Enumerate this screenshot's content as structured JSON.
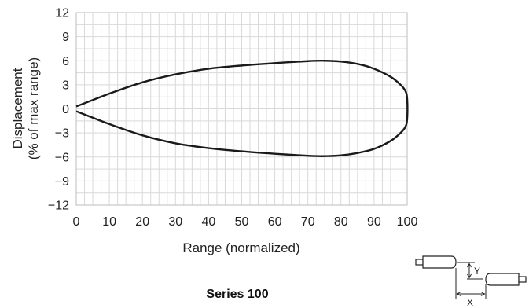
{
  "chart_data": {
    "type": "line",
    "title": "",
    "caption": "Series 100",
    "xlabel": "Range (normalized)",
    "ylabel_lines": [
      "Displacement",
      "(% of max range)"
    ],
    "xlim": [
      0,
      100
    ],
    "ylim": [
      -12,
      12
    ],
    "x_ticks": [
      0,
      10,
      20,
      30,
      40,
      50,
      60,
      70,
      80,
      90,
      100
    ],
    "y_ticks": [
      12,
      9,
      6,
      3,
      0,
      -3,
      -6,
      -9,
      -12
    ],
    "x_tick_labels": [
      "0",
      "10",
      "20",
      "30",
      "40",
      "50",
      "60",
      "70",
      "80",
      "90",
      "100"
    ],
    "y_tick_labels": [
      "12",
      "9",
      "6",
      "3",
      "0",
      "−3",
      "−6",
      "−9",
      "−12"
    ],
    "grid": true,
    "series": [
      {
        "x": [
          0,
          5,
          10,
          20,
          30,
          40,
          50,
          60,
          70,
          75,
          80,
          85,
          90,
          95,
          98,
          99.5,
          100
        ],
        "upper": [
          0.3,
          1.1,
          1.9,
          3.3,
          4.3,
          5.0,
          5.4,
          5.7,
          5.95,
          6.0,
          5.9,
          5.6,
          5.0,
          4.0,
          3.0,
          2.2,
          1.2
        ],
        "lower": [
          -0.3,
          -1.1,
          -1.9,
          -3.3,
          -4.3,
          -4.9,
          -5.3,
          -5.6,
          -5.85,
          -5.9,
          -5.8,
          -5.5,
          -5.0,
          -4.0,
          -3.0,
          -2.2,
          -1.2
        ]
      }
    ]
  },
  "diagram": {
    "y_label": "Y",
    "x_label": "X"
  }
}
